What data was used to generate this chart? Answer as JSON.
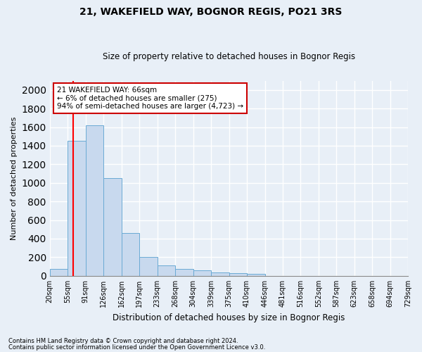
{
  "title": "21, WAKEFIELD WAY, BOGNOR REGIS, PO21 3RS",
  "subtitle": "Size of property relative to detached houses in Bognor Regis",
  "xlabel": "Distribution of detached houses by size in Bognor Regis",
  "ylabel": "Number of detached properties",
  "footnote1": "Contains HM Land Registry data © Crown copyright and database right 2024.",
  "footnote2": "Contains public sector information licensed under the Open Government Licence v3.0.",
  "annotation_line1": "21 WAKEFIELD WAY: 66sqm",
  "annotation_line2": "← 6% of detached houses are smaller (275)",
  "annotation_line3": "94% of semi-detached houses are larger (4,723) →",
  "bar_color": "#c8d9ee",
  "bar_edge_color": "#6aaad4",
  "red_line_x": 66,
  "bins": [
    20,
    55,
    91,
    126,
    162,
    197,
    233,
    268,
    304,
    339,
    375,
    410,
    446,
    481,
    516,
    552,
    587,
    623,
    658,
    694,
    729
  ],
  "bin_labels": [
    "20sqm",
    "55sqm",
    "91sqm",
    "126sqm",
    "162sqm",
    "197sqm",
    "233sqm",
    "268sqm",
    "304sqm",
    "339sqm",
    "375sqm",
    "410sqm",
    "446sqm",
    "481sqm",
    "516sqm",
    "552sqm",
    "587sqm",
    "623sqm",
    "658sqm",
    "694sqm",
    "729sqm"
  ],
  "bar_heights": [
    75,
    1450,
    1620,
    1050,
    460,
    200,
    110,
    75,
    60,
    40,
    30,
    20,
    0,
    0,
    0,
    0,
    0,
    0,
    0,
    0
  ],
  "ylim": [
    0,
    2100
  ],
  "yticks": [
    0,
    200,
    400,
    600,
    800,
    1000,
    1200,
    1400,
    1600,
    1800,
    2000
  ],
  "bg_color": "#e8eff7",
  "plot_bg_color": "#e8eff7",
  "grid_color": "#ffffff",
  "annotation_box_color": "#cc0000",
  "figsize": [
    6.0,
    5.0
  ],
  "dpi": 100
}
